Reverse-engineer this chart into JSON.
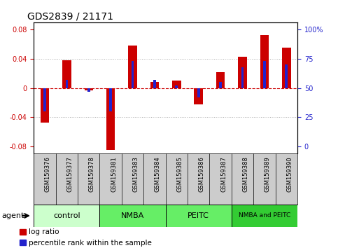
{
  "title": "GDS2839 / 21171",
  "samples": [
    "GSM159376",
    "GSM159377",
    "GSM159378",
    "GSM159381",
    "GSM159383",
    "GSM159384",
    "GSM159385",
    "GSM159386",
    "GSM159387",
    "GSM159388",
    "GSM159389",
    "GSM159390"
  ],
  "log_ratio": [
    -0.047,
    0.038,
    -0.003,
    -0.085,
    0.058,
    0.008,
    0.01,
    -0.022,
    0.022,
    0.043,
    0.073,
    0.055
  ],
  "percentile_rank": [
    30,
    57,
    47,
    30,
    73,
    57,
    52,
    42,
    55,
    68,
    73,
    70
  ],
  "groups": [
    {
      "label": "control",
      "start": 0,
      "end": 3,
      "color": "#ccffcc"
    },
    {
      "label": "NMBA",
      "start": 3,
      "end": 6,
      "color": "#66ee66"
    },
    {
      "label": "PEITC",
      "start": 6,
      "end": 9,
      "color": "#66ee66"
    },
    {
      "label": "NMBA and PEITC",
      "start": 9,
      "end": 12,
      "color": "#33cc33"
    }
  ],
  "ylim": [
    -0.09,
    0.09
  ],
  "yticks_left": [
    -0.08,
    -0.04,
    0,
    0.04,
    0.08
  ],
  "yticks_right": [
    0,
    25,
    50,
    75,
    100
  ],
  "bar_color_red": "#cc0000",
  "bar_color_blue": "#2222cc",
  "grid_color": "#aaaaaa",
  "zero_line_color": "#cc0000",
  "bg_plot": "#ffffff",
  "bg_tick": "#cccccc",
  "agent_label": "agent",
  "legend_log_ratio": "log ratio",
  "legend_percentile": "percentile rank within the sample",
  "bar_width": 0.4,
  "pct_bar_width": 0.12,
  "title_fontsize": 10,
  "tick_fontsize": 7,
  "group_fontsize": 8,
  "legend_fontsize": 7.5
}
